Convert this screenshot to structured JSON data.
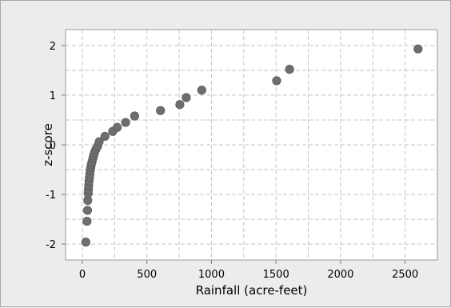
{
  "chart_data": {
    "type": "scatter",
    "title": "",
    "xlabel": "Rainfall (acre-feet)",
    "ylabel": "z-score",
    "xlim": [
      -130,
      2750
    ],
    "ylim": [
      -2.32,
      2.32
    ],
    "xticks": [
      0,
      500,
      1000,
      1500,
      2000,
      2500
    ],
    "yticks": [
      -2,
      -1,
      0,
      1,
      2
    ],
    "grid": true,
    "point_color": "#6e6e6e",
    "plot_background": "#ffffff",
    "series": [
      {
        "x": [
          27,
          36,
          40,
          42,
          45,
          47,
          49,
          52,
          55,
          58,
          61,
          65,
          69,
          75,
          82,
          88,
          95,
          105,
          118,
          130,
          175,
          235,
          270,
          335,
          405,
          605,
          755,
          805,
          925,
          1505,
          1605,
          2600
        ],
        "y": [
          -1.96,
          -1.54,
          -1.32,
          -1.12,
          -0.98,
          -0.9,
          -0.82,
          -0.73,
          -0.66,
          -0.59,
          -0.52,
          -0.46,
          -0.4,
          -0.34,
          -0.27,
          -0.21,
          -0.15,
          -0.09,
          -0.03,
          0.06,
          0.17,
          0.27,
          0.35,
          0.45,
          0.58,
          0.69,
          0.81,
          0.95,
          1.1,
          1.29,
          1.52,
          1.93
        ]
      }
    ]
  }
}
